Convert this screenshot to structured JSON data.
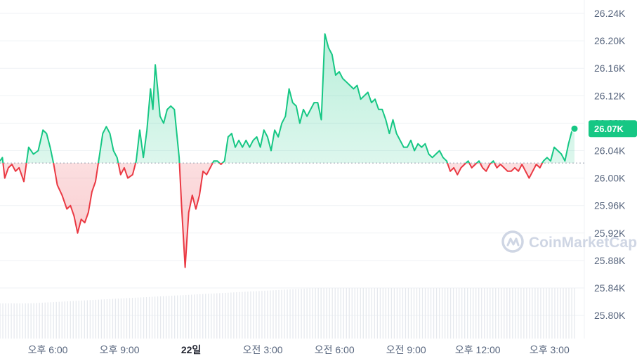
{
  "chart_data": {
    "type": "area",
    "title": "",
    "xlabel": "",
    "ylabel": "",
    "ylim": [
      25.76,
      26.26
    ],
    "y_ticks": [
      "26.24K",
      "26.20K",
      "26.16K",
      "26.12K",
      "26.08K",
      "26.04K",
      "26.00K",
      "25.96K",
      "25.92K",
      "25.88K",
      "25.84K",
      "25.80K"
    ],
    "y_tick_values": [
      26.24,
      26.2,
      26.16,
      26.12,
      26.08,
      26.04,
      26.0,
      25.96,
      25.92,
      25.88,
      25.84,
      25.8
    ],
    "x_range_hours": [
      16.0,
      15.8
    ],
    "x_ticks": [
      {
        "label": "오후 6:00",
        "t": 18,
        "bold": false
      },
      {
        "label": "오후 9:00",
        "t": 21,
        "bold": false
      },
      {
        "label": "22일",
        "t": 24,
        "bold": true
      },
      {
        "label": "오전 3:00",
        "t": 27,
        "bold": false
      },
      {
        "label": "오전 6:00",
        "t": 30,
        "bold": false
      },
      {
        "label": "오전 9:00",
        "t": 33,
        "bold": false
      },
      {
        "label": "오후 12:00",
        "t": 36,
        "bold": false
      },
      {
        "label": "오후 3:00",
        "t": 39,
        "bold": false
      }
    ],
    "baseline": 26.022,
    "current_price_label": "26.07K",
    "current_price": 26.072,
    "grid": true,
    "up_color": "#16c784",
    "down_color": "#ea3943",
    "badge_color": "#16c784",
    "series": [
      {
        "points": [
          [
            16.0,
            26.025
          ],
          [
            16.1,
            26.03
          ],
          [
            16.2,
            26.0
          ],
          [
            16.35,
            26.015
          ],
          [
            16.5,
            26.02
          ],
          [
            16.65,
            26.01
          ],
          [
            16.8,
            26.015
          ],
          [
            17.0,
            25.995
          ],
          [
            17.2,
            26.045
          ],
          [
            17.4,
            26.035
          ],
          [
            17.6,
            26.04
          ],
          [
            17.8,
            26.07
          ],
          [
            17.95,
            26.065
          ],
          [
            18.1,
            26.045
          ],
          [
            18.25,
            26.02
          ],
          [
            18.4,
            25.99
          ],
          [
            18.6,
            25.975
          ],
          [
            18.8,
            25.955
          ],
          [
            18.95,
            25.96
          ],
          [
            19.1,
            25.945
          ],
          [
            19.25,
            25.92
          ],
          [
            19.4,
            25.94
          ],
          [
            19.55,
            25.935
          ],
          [
            19.7,
            25.95
          ],
          [
            19.85,
            25.98
          ],
          [
            20.0,
            25.995
          ],
          [
            20.15,
            26.03
          ],
          [
            20.3,
            26.065
          ],
          [
            20.45,
            26.075
          ],
          [
            20.6,
            26.065
          ],
          [
            20.75,
            26.04
          ],
          [
            20.9,
            26.03
          ],
          [
            21.05,
            26.005
          ],
          [
            21.2,
            26.015
          ],
          [
            21.35,
            26.0
          ],
          [
            21.55,
            26.005
          ],
          [
            21.7,
            26.025
          ],
          [
            21.85,
            26.07
          ],
          [
            22.0,
            26.03
          ],
          [
            22.15,
            26.07
          ],
          [
            22.3,
            26.13
          ],
          [
            22.4,
            26.1
          ],
          [
            22.5,
            26.165
          ],
          [
            22.6,
            26.13
          ],
          [
            22.7,
            26.09
          ],
          [
            22.85,
            26.08
          ],
          [
            23.0,
            26.1
          ],
          [
            23.15,
            26.105
          ],
          [
            23.3,
            26.1
          ],
          [
            23.4,
            26.065
          ],
          [
            23.5,
            26.03
          ],
          [
            23.6,
            25.96
          ],
          [
            23.75,
            25.87
          ],
          [
            23.9,
            25.95
          ],
          [
            24.05,
            25.975
          ],
          [
            24.2,
            25.955
          ],
          [
            24.35,
            25.975
          ],
          [
            24.5,
            26.01
          ],
          [
            24.65,
            26.005
          ],
          [
            24.8,
            26.015
          ],
          [
            24.95,
            26.025
          ],
          [
            25.1,
            26.025
          ],
          [
            25.25,
            26.02
          ],
          [
            25.4,
            26.025
          ],
          [
            25.55,
            26.06
          ],
          [
            25.7,
            26.065
          ],
          [
            25.85,
            26.045
          ],
          [
            26.0,
            26.055
          ],
          [
            26.15,
            26.045
          ],
          [
            26.3,
            26.055
          ],
          [
            26.45,
            26.045
          ],
          [
            26.6,
            26.055
          ],
          [
            26.75,
            26.06
          ],
          [
            26.9,
            26.045
          ],
          [
            27.05,
            26.07
          ],
          [
            27.2,
            26.06
          ],
          [
            27.35,
            26.04
          ],
          [
            27.5,
            26.07
          ],
          [
            27.65,
            26.06
          ],
          [
            27.8,
            26.08
          ],
          [
            27.95,
            26.09
          ],
          [
            28.1,
            26.13
          ],
          [
            28.25,
            26.11
          ],
          [
            28.4,
            26.105
          ],
          [
            28.55,
            26.08
          ],
          [
            28.7,
            26.1
          ],
          [
            28.85,
            26.09
          ],
          [
            29.0,
            26.1
          ],
          [
            29.15,
            26.11
          ],
          [
            29.3,
            26.11
          ],
          [
            29.45,
            26.085
          ],
          [
            29.6,
            26.21
          ],
          [
            29.75,
            26.19
          ],
          [
            29.9,
            26.18
          ],
          [
            30.05,
            26.15
          ],
          [
            30.2,
            26.155
          ],
          [
            30.35,
            26.145
          ],
          [
            30.5,
            26.14
          ],
          [
            30.65,
            26.135
          ],
          [
            30.8,
            26.13
          ],
          [
            30.95,
            26.135
          ],
          [
            31.1,
            26.115
          ],
          [
            31.25,
            26.12
          ],
          [
            31.4,
            26.125
          ],
          [
            31.55,
            26.11
          ],
          [
            31.7,
            26.115
          ],
          [
            31.85,
            26.1
          ],
          [
            32.0,
            26.1
          ],
          [
            32.15,
            26.085
          ],
          [
            32.3,
            26.065
          ],
          [
            32.45,
            26.085
          ],
          [
            32.6,
            26.065
          ],
          [
            32.75,
            26.055
          ],
          [
            32.9,
            26.045
          ],
          [
            33.05,
            26.045
          ],
          [
            33.2,
            26.055
          ],
          [
            33.35,
            26.04
          ],
          [
            33.5,
            26.05
          ],
          [
            33.65,
            26.045
          ],
          [
            33.8,
            26.05
          ],
          [
            33.95,
            26.035
          ],
          [
            34.1,
            26.03
          ],
          [
            34.25,
            26.035
          ],
          [
            34.4,
            26.04
          ],
          [
            34.55,
            26.03
          ],
          [
            34.7,
            26.025
          ],
          [
            34.85,
            26.01
          ],
          [
            35.0,
            26.015
          ],
          [
            35.15,
            26.005
          ],
          [
            35.3,
            26.015
          ],
          [
            35.45,
            26.02
          ],
          [
            35.6,
            26.025
          ],
          [
            35.75,
            26.015
          ],
          [
            35.9,
            26.02
          ],
          [
            36.05,
            26.025
          ],
          [
            36.2,
            26.015
          ],
          [
            36.35,
            26.01
          ],
          [
            36.5,
            26.02
          ],
          [
            36.65,
            26.025
          ],
          [
            36.8,
            26.015
          ],
          [
            36.95,
            26.02
          ],
          [
            37.1,
            26.015
          ],
          [
            37.25,
            26.01
          ],
          [
            37.4,
            26.01
          ],
          [
            37.55,
            26.015
          ],
          [
            37.7,
            26.01
          ],
          [
            37.85,
            26.02
          ],
          [
            38.0,
            26.01
          ],
          [
            38.15,
            26.0
          ],
          [
            38.3,
            26.01
          ],
          [
            38.45,
            26.02
          ],
          [
            38.6,
            26.015
          ],
          [
            38.75,
            26.025
          ],
          [
            38.9,
            26.03
          ],
          [
            39.05,
            26.025
          ],
          [
            39.2,
            26.045
          ],
          [
            39.35,
            26.04
          ],
          [
            39.5,
            26.035
          ],
          [
            39.65,
            26.025
          ],
          [
            39.8,
            26.05
          ],
          [
            39.95,
            26.07
          ],
          [
            40.05,
            26.072
          ]
        ]
      }
    ],
    "volume_note": "bars"
  },
  "watermark": {
    "brand": "CoinMarketCap"
  }
}
